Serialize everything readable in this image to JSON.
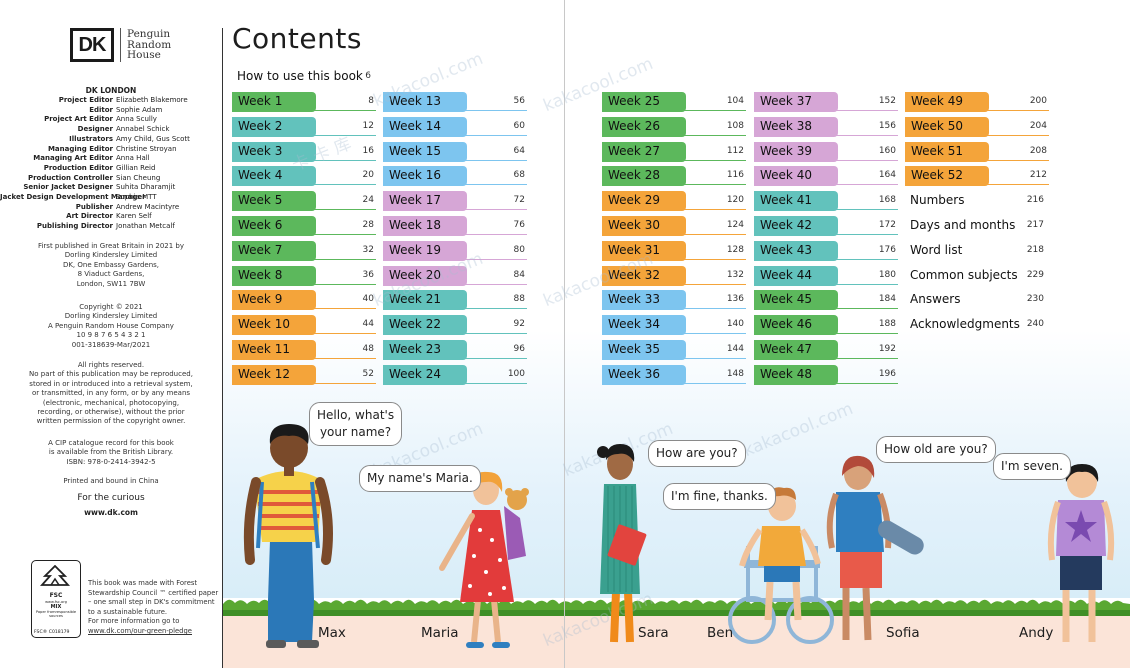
{
  "imprint": {
    "logo": "DK",
    "publisher_lines": [
      "Penguin",
      "Random",
      "House"
    ],
    "heading": "DK LONDON",
    "credits": [
      {
        "role": "Project Editor",
        "name": "Elizabeth Blakemore"
      },
      {
        "role": "Editor",
        "name": "Sophie Adam"
      },
      {
        "role": "Project Art Editor",
        "name": "Anna Scully"
      },
      {
        "role": "Designer",
        "name": "Annabel Schick"
      },
      {
        "role": "Illustrators",
        "name": "Amy Child, Gus Scott"
      },
      {
        "role": "Managing Editor",
        "name": "Christine Stroyan"
      },
      {
        "role": "Managing Art Editor",
        "name": "Anna Hall"
      },
      {
        "role": "Production Editor",
        "name": "Gillian Reid"
      },
      {
        "role": "Production Controller",
        "name": "Sian Cheung"
      },
      {
        "role": "Senior Jacket Designer",
        "name": "Suhita Dharamjit"
      },
      {
        "role": "Jacket Design Development Manager",
        "name": "Sophia MTT"
      },
      {
        "role": "Publisher",
        "name": "Andrew Macintyre"
      },
      {
        "role": "Art Director",
        "name": "Karen Self"
      },
      {
        "role": "Publishing Director",
        "name": "Jonathan Metcalf"
      }
    ],
    "first_published": [
      "First published in Great Britain in 2021 by",
      "Dorling Kindersley Limited",
      "DK, One Embassy Gardens,",
      "8 Viaduct Gardens,",
      "London, SW11 7BW"
    ],
    "copyright": [
      "Copyright © 2021",
      "Dorling Kindersley Limited",
      "A Penguin Random House Company",
      "10 9 8 7 6 5 4 3 2 1",
      "001-318639-Mar/2021"
    ],
    "rights": [
      "All rights reserved.",
      "No part of this publication may be reproduced,",
      "stored in or introduced into a retrieval system,",
      "or transmitted, in any form, or by any means",
      "(electronic, mechanical, photocopying,",
      "recording, or otherwise), without the prior",
      "written permission of the copyright owner."
    ],
    "cip": [
      "A CIP catalogue record for this book",
      "is available from the British Library.",
      "ISBN: 978-0-2414-3942-5"
    ],
    "printed": "Printed and bound in China",
    "for_the_curious": "For the curious",
    "website": "www.dk.com",
    "fsc": {
      "logo": "FSC",
      "site": "www.fsc.org",
      "mix": "MIX",
      "sub": [
        "Paper from",
        "responsible sources"
      ],
      "code": "FSC® C018179"
    },
    "paper_note": [
      "This book was made with Forest",
      "Stewardship Council ™ certified paper",
      "– one small step in DK's commitment",
      "to a sustainable future.",
      "For more information go to"
    ],
    "paper_link": "www.dk.com/our-green-pledge"
  },
  "contents": {
    "title": "Contents",
    "intro": {
      "label": "How to use this book",
      "page": "6"
    },
    "columns": [
      [
        {
          "label": "Week 1",
          "page": "8",
          "color": "#5cb85c"
        },
        {
          "label": "Week 2",
          "page": "12",
          "color": "#62c2bc"
        },
        {
          "label": "Week 3",
          "page": "16",
          "color": "#62c2bc"
        },
        {
          "label": "Week 4",
          "page": "20",
          "color": "#62c2bc"
        },
        {
          "label": "Week 5",
          "page": "24",
          "color": "#5cb85c"
        },
        {
          "label": "Week 6",
          "page": "28",
          "color": "#5cb85c"
        },
        {
          "label": "Week 7",
          "page": "32",
          "color": "#5cb85c"
        },
        {
          "label": "Week 8",
          "page": "36",
          "color": "#5cb85c"
        },
        {
          "label": "Week 9",
          "page": "40",
          "color": "#f4a43a"
        },
        {
          "label": "Week 10",
          "page": "44",
          "color": "#f4a43a"
        },
        {
          "label": "Week 11",
          "page": "48",
          "color": "#f4a43a"
        },
        {
          "label": "Week 12",
          "page": "52",
          "color": "#f4a43a"
        }
      ],
      [
        {
          "label": "Week 13",
          "page": "56",
          "color": "#7dc5ef"
        },
        {
          "label": "Week 14",
          "page": "60",
          "color": "#7dc5ef"
        },
        {
          "label": "Week 15",
          "page": "64",
          "color": "#7dc5ef"
        },
        {
          "label": "Week 16",
          "page": "68",
          "color": "#7dc5ef"
        },
        {
          "label": "Week 17",
          "page": "72",
          "color": "#d6a6d6"
        },
        {
          "label": "Week 18",
          "page": "76",
          "color": "#d6a6d6"
        },
        {
          "label": "Week 19",
          "page": "80",
          "color": "#d6a6d6"
        },
        {
          "label": "Week 20",
          "page": "84",
          "color": "#d6a6d6"
        },
        {
          "label": "Week 21",
          "page": "88",
          "color": "#62c2bc"
        },
        {
          "label": "Week 22",
          "page": "92",
          "color": "#62c2bc"
        },
        {
          "label": "Week 23",
          "page": "96",
          "color": "#62c2bc"
        },
        {
          "label": "Week 24",
          "page": "100",
          "color": "#62c2bc"
        }
      ],
      [
        {
          "label": "Week 25",
          "page": "104",
          "color": "#5cb85c"
        },
        {
          "label": "Week 26",
          "page": "108",
          "color": "#5cb85c"
        },
        {
          "label": "Week 27",
          "page": "112",
          "color": "#5cb85c"
        },
        {
          "label": "Week 28",
          "page": "116",
          "color": "#5cb85c"
        },
        {
          "label": "Week 29",
          "page": "120",
          "color": "#f4a43a"
        },
        {
          "label": "Week 30",
          "page": "124",
          "color": "#f4a43a"
        },
        {
          "label": "Week 31",
          "page": "128",
          "color": "#f4a43a"
        },
        {
          "label": "Week 32",
          "page": "132",
          "color": "#f4a43a"
        },
        {
          "label": "Week 33",
          "page": "136",
          "color": "#7dc5ef"
        },
        {
          "label": "Week 34",
          "page": "140",
          "color": "#7dc5ef"
        },
        {
          "label": "Week 35",
          "page": "144",
          "color": "#7dc5ef"
        },
        {
          "label": "Week 36",
          "page": "148",
          "color": "#7dc5ef"
        }
      ],
      [
        {
          "label": "Week 37",
          "page": "152",
          "color": "#d6a6d6"
        },
        {
          "label": "Week 38",
          "page": "156",
          "color": "#d6a6d6"
        },
        {
          "label": "Week 39",
          "page": "160",
          "color": "#d6a6d6"
        },
        {
          "label": "Week 40",
          "page": "164",
          "color": "#d6a6d6"
        },
        {
          "label": "Week 41",
          "page": "168",
          "color": "#62c2bc"
        },
        {
          "label": "Week 42",
          "page": "172",
          "color": "#62c2bc"
        },
        {
          "label": "Week 43",
          "page": "176",
          "color": "#62c2bc"
        },
        {
          "label": "Week 44",
          "page": "180",
          "color": "#62c2bc"
        },
        {
          "label": "Week 45",
          "page": "184",
          "color": "#5cb85c"
        },
        {
          "label": "Week 46",
          "page": "188",
          "color": "#5cb85c"
        },
        {
          "label": "Week 47",
          "page": "192",
          "color": "#5cb85c"
        },
        {
          "label": "Week 48",
          "page": "196",
          "color": "#5cb85c"
        }
      ],
      [
        {
          "label": "Week 49",
          "page": "200",
          "color": "#f4a43a"
        },
        {
          "label": "Week 50",
          "page": "204",
          "color": "#f4a43a"
        },
        {
          "label": "Week 51",
          "page": "208",
          "color": "#f4a43a"
        },
        {
          "label": "Week 52",
          "page": "212",
          "color": "#f4a43a"
        },
        {
          "label": "Numbers",
          "page": "216"
        },
        {
          "label": "Days and months",
          "page": "217"
        },
        {
          "label": "Word list",
          "page": "218"
        },
        {
          "label": "Common subjects",
          "page": "229"
        },
        {
          "label": "Answers",
          "page": "230"
        },
        {
          "label": "Acknowledgments",
          "page": "240"
        }
      ]
    ]
  },
  "scene": {
    "names": [
      "Max",
      "Maria",
      "Sara",
      "Ben",
      "Sofia",
      "Andy"
    ],
    "bubbles": [
      [
        "Hello, what's",
        "your name?"
      ],
      [
        "My name's Maria."
      ],
      [
        "How are you?"
      ],
      [
        "I'm fine, thanks."
      ],
      [
        "How old are you?"
      ],
      [
        "I'm seven."
      ]
    ],
    "watermark": [
      "kakacool.com",
      "卡 卡 库"
    ]
  }
}
